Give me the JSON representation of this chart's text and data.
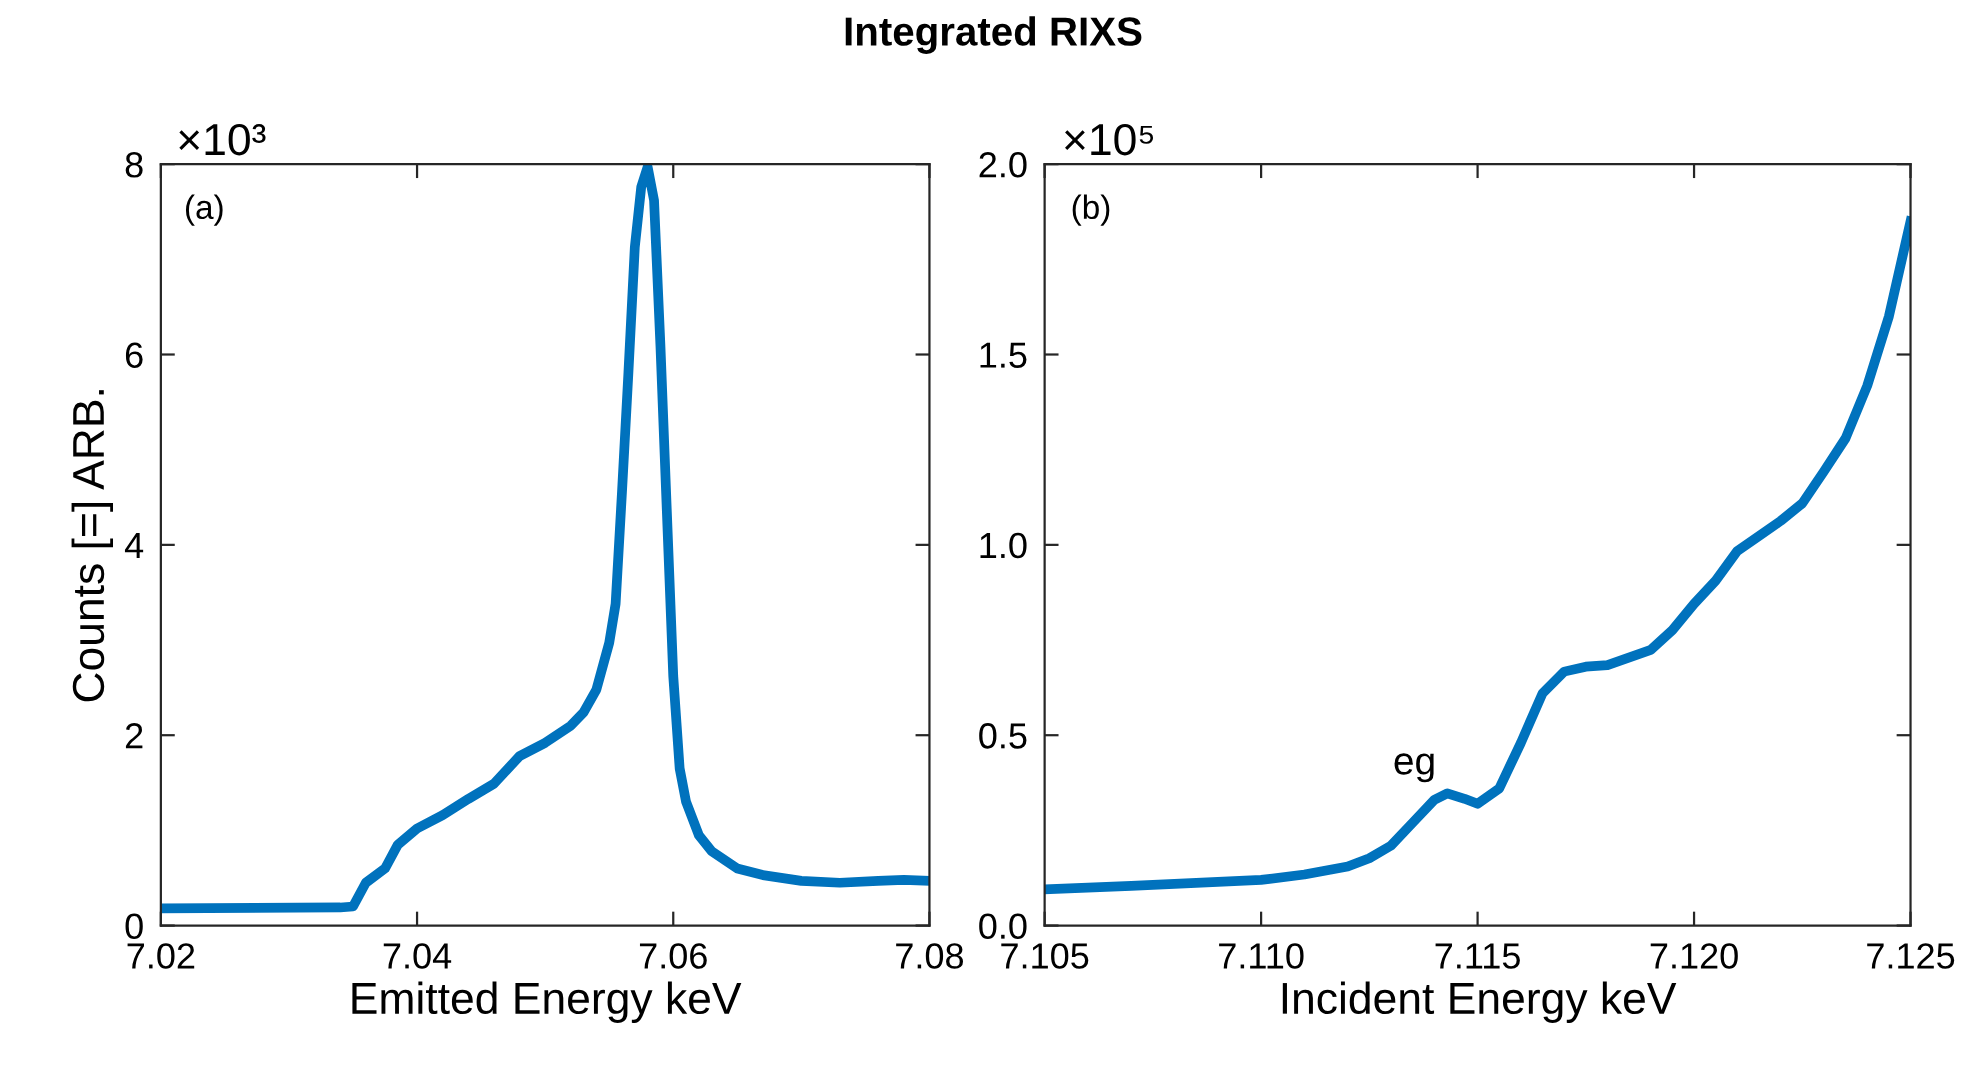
{
  "chart_data": [
    {
      "type": "line",
      "title": "Integrated RIXS",
      "xlabel": "Emitted Energy keV",
      "ylabel": "Counts [=] ARB.",
      "annotations": [
        "(a)",
        "×10³"
      ],
      "xlim": [
        7.02,
        7.08
      ],
      "ylim": [
        0,
        8
      ],
      "xticks": [
        7.02,
        7.04,
        7.06,
        7.08
      ],
      "yticks": [
        0,
        2,
        4,
        6,
        8
      ],
      "grid": false,
      "legend": false,
      "series": [
        {
          "color": "#0072bd",
          "x": [
            7.02,
            7.034,
            7.035,
            7.036,
            7.0375,
            7.0385,
            7.04,
            7.042,
            7.044,
            7.046,
            7.048,
            7.05,
            7.052,
            7.053,
            7.054,
            7.055,
            7.0555,
            7.056,
            7.0565,
            7.057,
            7.0575,
            7.058,
            7.0585,
            7.059,
            7.0595,
            7.06,
            7.0605,
            7.061,
            7.062,
            7.063,
            7.065,
            7.067,
            7.07,
            7.073,
            7.076,
            7.078,
            7.08
          ],
          "values": [
            0.18,
            0.19,
            0.2,
            0.45,
            0.6,
            0.85,
            1.02,
            1.16,
            1.33,
            1.49,
            1.78,
            1.92,
            2.1,
            2.24,
            2.48,
            2.97,
            3.38,
            4.56,
            5.81,
            7.13,
            7.76,
            7.97,
            7.62,
            6.09,
            4.35,
            2.62,
            1.65,
            1.3,
            0.95,
            0.78,
            0.6,
            0.53,
            0.47,
            0.45,
            0.47,
            0.48,
            0.47
          ]
        }
      ]
    },
    {
      "type": "line",
      "xlabel": "Incident Energy keV",
      "annotations": [
        "(b)",
        "×10⁵",
        {
          "text": "eg",
          "x": 7.1143,
          "y": 0.347
        }
      ],
      "xlim": [
        7.105,
        7.125
      ],
      "ylim": [
        0,
        2.0
      ],
      "grid": false,
      "legend": false,
      "xticks": [
        {
          "value": 7.105,
          "label": "7.105"
        },
        {
          "value": 7.11,
          "label": "7.110"
        },
        {
          "value": 7.115,
          "label": "7.115"
        },
        {
          "value": 7.12,
          "label": "7.120"
        },
        {
          "value": 7.125,
          "label": "7.125"
        }
      ],
      "yticks": [
        {
          "value": 0,
          "label": "0.0"
        },
        {
          "value": 0.5,
          "label": "0.5"
        },
        {
          "value": 1.0,
          "label": "1.0"
        },
        {
          "value": 1.5,
          "label": "1.5"
        },
        {
          "value": 2.0,
          "label": "2.0"
        }
      ],
      "series": [
        {
          "color": "#0072bd",
          "x": [
            7.105,
            7.107,
            7.109,
            7.11,
            7.111,
            7.112,
            7.1125,
            7.113,
            7.1135,
            7.114,
            7.1143,
            7.1147,
            7.115,
            7.1155,
            7.116,
            7.1165,
            7.117,
            7.1175,
            7.118,
            7.119,
            7.1195,
            7.12,
            7.1205,
            7.121,
            7.1215,
            7.122,
            7.1225,
            7.123,
            7.1235,
            7.124,
            7.1245,
            7.125
          ],
          "values": [
            0.095,
            0.104,
            0.115,
            0.12,
            0.134,
            0.155,
            0.177,
            0.21,
            0.27,
            0.33,
            0.347,
            0.333,
            0.32,
            0.36,
            0.48,
            0.61,
            0.667,
            0.68,
            0.684,
            0.724,
            0.776,
            0.845,
            0.906,
            0.984,
            1.023,
            1.063,
            1.109,
            1.193,
            1.28,
            1.418,
            1.6,
            1.85
          ]
        }
      ]
    }
  ]
}
